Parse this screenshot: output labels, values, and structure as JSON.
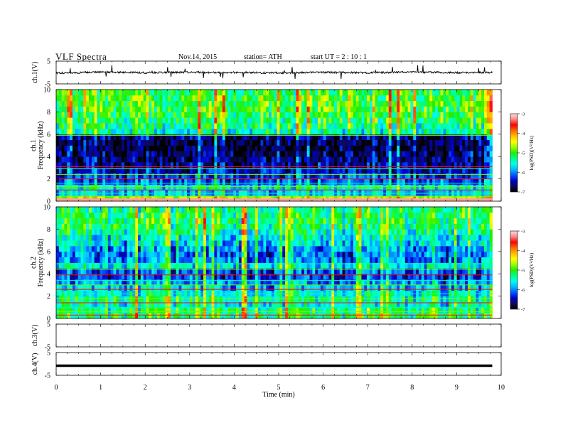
{
  "header": {
    "title": "VLF  Spectra",
    "date": "Nov.14, 2015",
    "station": "station= ATH",
    "start_ut": "start  UT  =   2  : 10 : 1"
  },
  "colors": {
    "colormap": [
      "#000000",
      "#0a0a5a",
      "#0000cc",
      "#0055ff",
      "#00bbff",
      "#00ffee",
      "#00ff88",
      "#22ee00",
      "#99ff00",
      "#ffff00",
      "#ffbb00",
      "#ff6600",
      "#ff0000",
      "#ff8888",
      "#ffdddd"
    ],
    "trace": "#000000"
  },
  "chart_data": [
    {
      "type": "line",
      "panel": "ch1-waveform",
      "ylabel": "ch.1(V)",
      "ylim": [
        -5,
        5
      ],
      "y_ticks": [
        "5",
        "-5"
      ],
      "x": [
        0,
        1,
        2,
        3,
        4,
        5,
        6,
        7,
        8,
        9,
        9.8
      ],
      "values": [
        -0.3,
        0.2,
        -0.1,
        0.1,
        0.0,
        -0.2,
        0.1,
        -0.1,
        0.2,
        -0.1,
        0.0
      ],
      "xlim": [
        0,
        10
      ]
    },
    {
      "type": "heatmap",
      "panel": "ch1-spectrogram",
      "ylabel_top": "ch.1",
      "ylabel": "Frequency  (kHz)",
      "ylim": [
        0,
        10
      ],
      "y_ticks": [
        "0",
        "2",
        "4",
        "6",
        "8",
        "10"
      ],
      "xlim": [
        0,
        9.8
      ],
      "colorbar": {
        "label": "log(PSD)(V²/Hz)",
        "range": [
          -7,
          -3
        ],
        "ticks": [
          "-3",
          "-4",
          "-5",
          "-6",
          "-7"
        ]
      },
      "freq_khz": [
        0.25,
        0.75,
        1.25,
        1.75,
        2.25,
        2.75,
        3.25,
        3.75,
        4.25,
        4.75,
        5.25,
        5.75,
        6.25,
        6.75,
        7.25,
        7.75,
        8.25,
        8.75,
        9.25,
        9.75
      ],
      "mean_log_psd": [
        -4.6,
        -5.8,
        -5.6,
        -6.2,
        -6.3,
        -6.5,
        -6.6,
        -6.7,
        -6.7,
        -6.8,
        -6.8,
        -6.7,
        -5.5,
        -5.3,
        -5.2,
        -5.1,
        -5.0,
        -5.0,
        -5.0,
        -5.1
      ]
    },
    {
      "type": "heatmap",
      "panel": "ch2-spectrogram",
      "ylabel_top": "ch.2",
      "ylabel": "Frequency  (kHz)",
      "ylim": [
        0,
        10
      ],
      "y_ticks": [
        "0",
        "2",
        "4",
        "6",
        "8",
        "10"
      ],
      "xlim": [
        0,
        9.8
      ],
      "colorbar": {
        "label": "log(PSD)(V²/Hz)",
        "range": [
          -7,
          -3
        ],
        "ticks": [
          "-3",
          "-4",
          "-5",
          "-6",
          "-7"
        ]
      },
      "freq_khz": [
        0.25,
        0.75,
        1.25,
        1.75,
        2.25,
        2.75,
        3.25,
        3.75,
        4.25,
        4.75,
        5.25,
        5.75,
        6.25,
        6.75,
        7.25,
        7.75,
        8.25,
        8.75,
        9.25,
        9.75
      ],
      "mean_log_psd": [
        -5.2,
        -5.3,
        -5.5,
        -5.4,
        -5.6,
        -5.8,
        -6.0,
        -6.3,
        -6.2,
        -5.6,
        -6.0,
        -6.1,
        -5.9,
        -5.7,
        -5.6,
        -5.4,
        -5.3,
        -5.2,
        -5.2,
        -5.3
      ]
    },
    {
      "type": "line",
      "panel": "ch3-waveform",
      "ylabel": "ch.3(V)",
      "ylim": [
        -5,
        5
      ],
      "y_ticks": [
        "5",
        "-5"
      ],
      "x": [],
      "values": [],
      "xlim": [
        0,
        10
      ]
    },
    {
      "type": "line",
      "panel": "ch4-waveform",
      "ylabel": "ch.4(V)",
      "ylim": [
        -5,
        5
      ],
      "y_ticks": [
        "5",
        "-5"
      ],
      "x": [
        0,
        9.8
      ],
      "values": [
        -0.8,
        -0.8
      ],
      "xlim": [
        0,
        10
      ]
    }
  ],
  "x_axis": {
    "label": "Time  (min)",
    "ticks": [
      "0",
      "1",
      "2",
      "3",
      "4",
      "5",
      "6",
      "7",
      "8",
      "9",
      "10"
    ],
    "range": [
      0,
      10
    ]
  }
}
